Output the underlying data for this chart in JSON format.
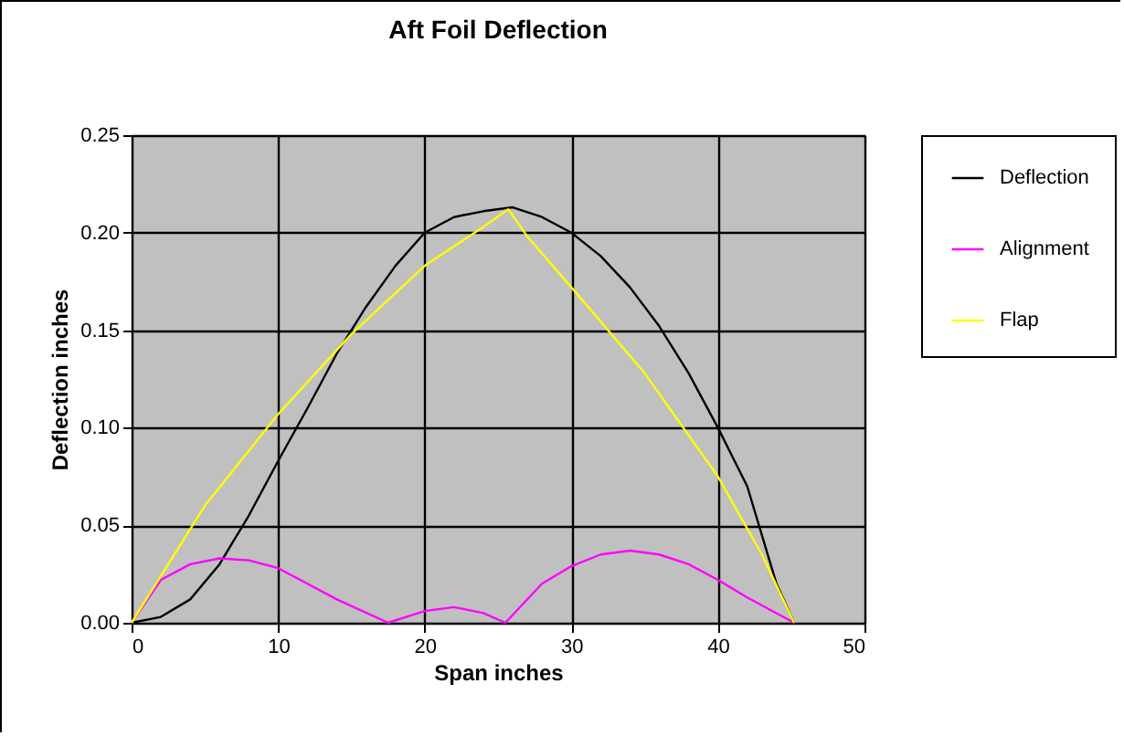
{
  "chart_data": {
    "type": "line",
    "title": "Aft Foil Deflection",
    "xlabel": "Span inches",
    "ylabel": "Deflection inches",
    "xlim": [
      0,
      50
    ],
    "xticks": [
      0,
      10,
      20,
      30,
      40,
      50
    ],
    "ylim": [
      0,
      0.25
    ],
    "yticks": [
      {
        "value": 0,
        "label": "0.00"
      },
      {
        "value": 0.05,
        "label": "0.05"
      },
      {
        "value": 0.1,
        "label": "0.10"
      },
      {
        "value": 0.15,
        "label": "0.15"
      },
      {
        "value": 0.2,
        "label": "0.20"
      },
      {
        "value": 0.25,
        "label": "0.25"
      }
    ],
    "grid": true,
    "legend": "right",
    "marker": "none",
    "line_style": "solid",
    "series": [
      {
        "name": "Deflection",
        "color": "#000000",
        "x": [
          0,
          2,
          4,
          6,
          8,
          10,
          12,
          14,
          16,
          18,
          20,
          22,
          24,
          26,
          28,
          30,
          32,
          34,
          36,
          38,
          40,
          42,
          44,
          45.2
        ],
        "values": [
          0,
          0.003,
          0.012,
          0.03,
          0.055,
          0.083,
          0.11,
          0.138,
          0.162,
          0.183,
          0.2,
          0.208,
          0.211,
          0.213,
          0.208,
          0.2,
          0.188,
          0.172,
          0.152,
          0.128,
          0.1,
          0.07,
          0.02,
          0
        ]
      },
      {
        "name": "Alignment",
        "color": "#ff00ff",
        "x": [
          0,
          2,
          4,
          6,
          8,
          10,
          12,
          14,
          17.5,
          20,
          22,
          24,
          25.5,
          28,
          30,
          32,
          34,
          36,
          38,
          40,
          42,
          45.2
        ],
        "values": [
          0,
          0.022,
          0.03,
          0.033,
          0.032,
          0.028,
          0.02,
          0.012,
          0,
          0.006,
          0.008,
          0.005,
          0,
          0.02,
          0.029,
          0.035,
          0.037,
          0.035,
          0.03,
          0.022,
          0.013,
          0
        ]
      },
      {
        "name": "Flap",
        "color": "#ffff00",
        "x": [
          0,
          5,
          10,
          15,
          20,
          24,
          25.7,
          27,
          30,
          35,
          40,
          43,
          45.2
        ],
        "values": [
          0,
          0.06,
          0.107,
          0.148,
          0.183,
          0.203,
          0.212,
          0.198,
          0.172,
          0.128,
          0.075,
          0.035,
          0
        ]
      }
    ]
  }
}
